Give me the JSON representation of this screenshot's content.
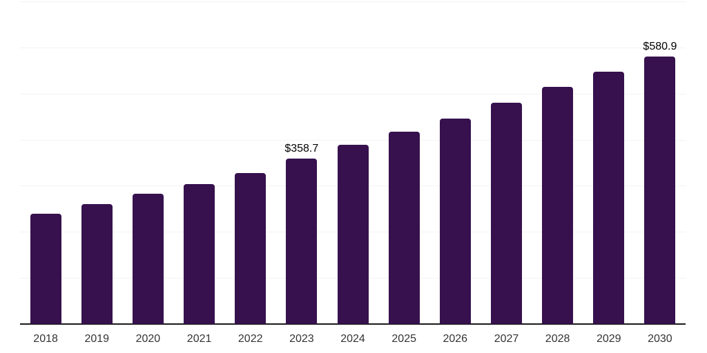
{
  "chart_data": {
    "type": "bar",
    "title": "",
    "categories": [
      "2018",
      "2019",
      "2020",
      "2021",
      "2022",
      "2023",
      "2024",
      "2025",
      "2026",
      "2027",
      "2028",
      "2029",
      "2030"
    ],
    "values": [
      240,
      260,
      283,
      303,
      327,
      358.7,
      389,
      417,
      446,
      480,
      514,
      548,
      580.9
    ],
    "point_labels": [
      "",
      "",
      "",
      "",
      "",
      "$358.7",
      "",
      "",
      "",
      "",
      "",
      "",
      "$580.9"
    ],
    "xlabel": "",
    "ylabel": "",
    "ylim": [
      0,
      700
    ],
    "y_gridline_step": 100,
    "grid": "horizontal-only",
    "legend_position": "none",
    "y_tick_labels_shown": false,
    "bar_color": "#36114E",
    "x_axis_line_color": "#1A1A1A",
    "gridline_color": "#F2F2F2",
    "tick_label_color": "#333333",
    "data_label_color": "#000000",
    "background_color": "#FFFFFF"
  }
}
